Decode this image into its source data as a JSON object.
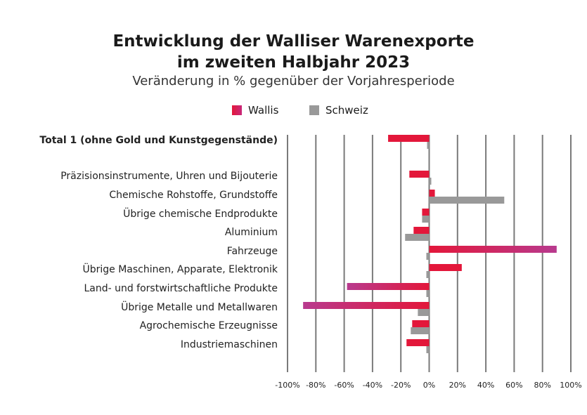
{
  "chart_data": {
    "type": "bar",
    "orientation": "horizontal",
    "title_line1": "Entwicklung der Walliser Warenexporte",
    "title_line2": "im zweiten Halbjahr 2023",
    "subtitle": "Veränderung in % gegenüber der Vorjahresperiode",
    "categories": [
      "Total 1 (ohne Gold und Kunstgegenstände)",
      "Präzisionsinstrumente, Uhren und Bijouterie",
      "Chemische Rohstoffe, Grundstoffe",
      "Übrige chemische Endprodukte",
      "Aluminium",
      "Fahrzeuge",
      "Übrige Maschinen, Apparate, Elektronik",
      "Land- und forstwirtschaftliche Produkte",
      "Übrige Metalle und Metallwaren",
      "Agrochemische Erzeugnisse",
      "Industriemaschinen"
    ],
    "series": [
      {
        "name": "Wallis",
        "color": "#e3173a",
        "values": [
          -29,
          -14,
          4,
          -5,
          -11,
          90,
          23,
          -58,
          -89,
          -12,
          -16
        ]
      },
      {
        "name": "Schweiz",
        "color": "#999999",
        "values": [
          -1,
          0,
          53,
          -5,
          -17,
          -2,
          -2,
          -2,
          -8,
          -13,
          -2
        ]
      }
    ],
    "xlim": [
      -100,
      100
    ],
    "xticks": [
      "-100%",
      "-80%",
      "-60%",
      "-40%",
      "-20%",
      "0%",
      "20%",
      "40%",
      "60%",
      "80%",
      "100%"
    ],
    "grid": true,
    "legend_position": "top"
  }
}
